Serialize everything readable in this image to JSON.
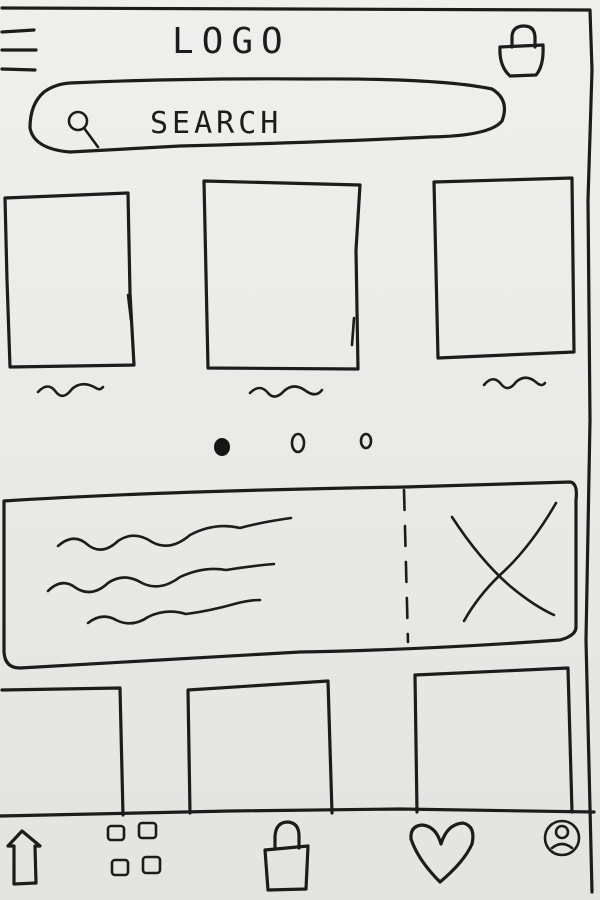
{
  "header": {
    "logo": "LOGO",
    "menu_icon": "hamburger-menu-icon",
    "cart_icon": "shopping-bag-icon"
  },
  "search": {
    "placeholder": "SEARCH",
    "icon": "search-icon"
  },
  "carousel": {
    "cards": [
      {
        "caption_icon": "squiggle-text-placeholder"
      },
      {
        "caption_icon": "squiggle-text-placeholder"
      },
      {
        "caption_icon": "squiggle-text-placeholder"
      }
    ],
    "dots": {
      "count": 3,
      "active_index": 0
    }
  },
  "banner": {
    "text_lines": 3,
    "image_icon": "image-placeholder-icon"
  },
  "bottom_nav": {
    "items": [
      {
        "icon": "home-arrow-icon"
      },
      {
        "icon": "grid-categories-icon"
      },
      {
        "icon": "shopping-bag-icon"
      },
      {
        "icon": "heart-icon"
      },
      {
        "icon": "profile-icon"
      }
    ]
  }
}
